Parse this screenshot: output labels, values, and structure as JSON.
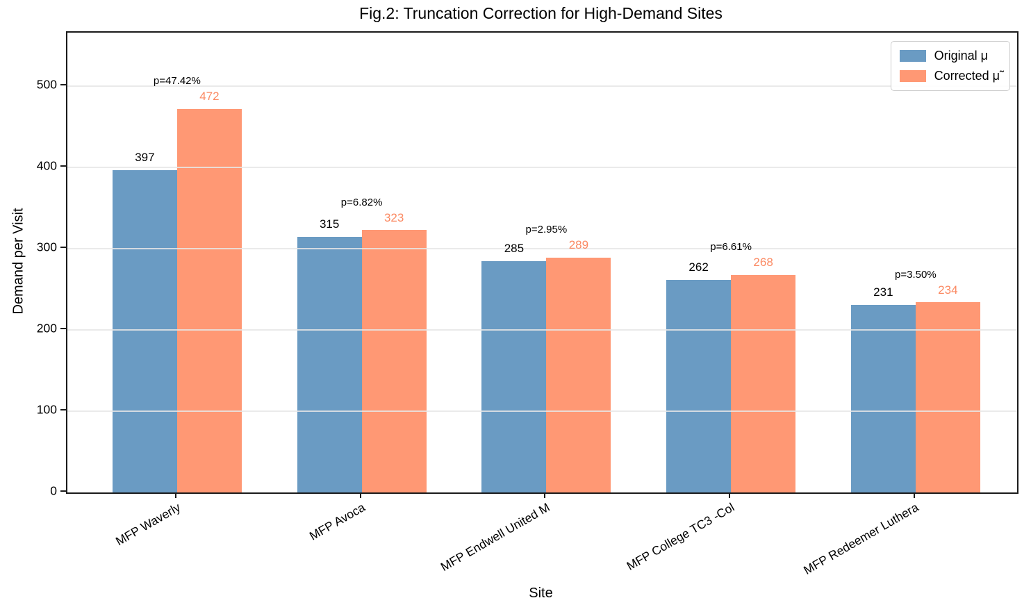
{
  "chart_data": {
    "type": "bar",
    "title": "Fig.2: Truncation Correction for High-Demand Sites",
    "xlabel": "Site",
    "ylabel": "Demand per Visit",
    "categories": [
      "MFP Waverly",
      "MFP Avoca",
      "MFP Endwell United M",
      "MFP College TC3 -Col",
      "MFP Redeemer Luthera"
    ],
    "series": [
      {
        "name": "Original μ",
        "color": "#6a9bc3",
        "label_color": "#000000",
        "values": [
          397,
          315,
          285,
          262,
          231
        ]
      },
      {
        "name": "Corrected μ̃",
        "color": "#ff9874",
        "label_color": "#fb8a63",
        "values": [
          472,
          323,
          289,
          268,
          234
        ]
      }
    ],
    "pct_labels": [
      "p=47.42%",
      "p=6.82%",
      "p=2.95%",
      "p=6.61%",
      "p=3.50%"
    ],
    "yticks": [
      0,
      100,
      200,
      300,
      400,
      500
    ],
    "ylim": [
      0,
      566
    ],
    "grid": true,
    "legend_position": "upper right"
  }
}
